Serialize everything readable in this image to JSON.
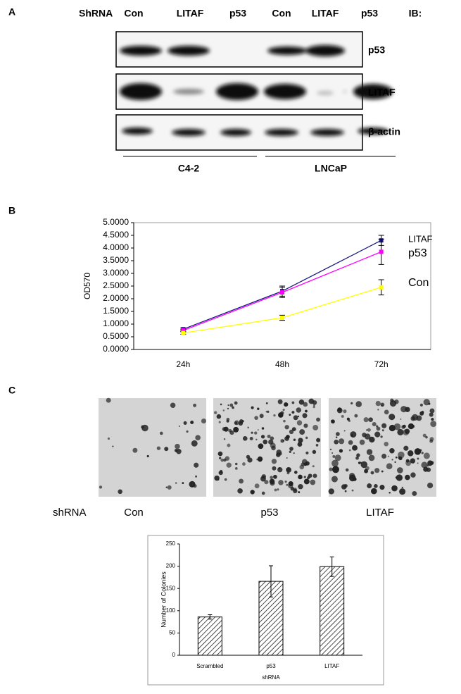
{
  "panels": {
    "A": {
      "label": "A",
      "header": [
        "ShRNA",
        "Con",
        "LITAF",
        "p53",
        "Con",
        "LITAF",
        "p53",
        "IB:"
      ],
      "blots": [
        "p53",
        "LITAF",
        "β-actin"
      ],
      "groups": [
        "C4-2",
        "LNCaP"
      ]
    },
    "B": {
      "label": "B"
    },
    "C": {
      "label": "C",
      "row_label": "shRNA",
      "images": [
        "Con",
        "p53",
        "LITAF"
      ]
    }
  },
  "chart_data": [
    {
      "type": "line",
      "categories": [
        "24h",
        "48h",
        "72h"
      ],
      "y_label": "OD570",
      "ylim": [
        0,
        5
      ],
      "yticks": [
        {
          "value": 0,
          "label": "0.0000"
        },
        {
          "value": 0.5,
          "label": "0.5000"
        },
        {
          "value": 1,
          "label": "1.0000"
        },
        {
          "value": 1.5,
          "label": "1.5000"
        },
        {
          "value": 2,
          "label": "2.0000"
        },
        {
          "value": 2.5,
          "label": "2.5000"
        },
        {
          "value": 3,
          "label": "3.0000"
        },
        {
          "value": 3.5,
          "label": "3.5000"
        },
        {
          "value": 4,
          "label": "4.0000"
        },
        {
          "value": 4.5,
          "label": "4.5000"
        },
        {
          "value": 5,
          "label": "5.0000"
        }
      ],
      "series": [
        {
          "name": "LITAF",
          "color": "#1a1a80",
          "values": [
            0.8,
            2.3,
            4.3
          ],
          "errors": [
            0.05,
            0.2,
            0.2
          ]
        },
        {
          "name": "p53",
          "color": "#ff00ff",
          "values": [
            0.75,
            2.25,
            3.85
          ],
          "errors": [
            0.05,
            0.2,
            0.5
          ]
        },
        {
          "name": "Con",
          "color": "#ffff00",
          "values": [
            0.65,
            1.25,
            2.45
          ],
          "errors": [
            0.05,
            0.1,
            0.3
          ]
        }
      ]
    },
    {
      "type": "bar",
      "categories": [
        "Scrambled",
        "p53",
        "LITAF"
      ],
      "values": [
        86,
        166,
        199
      ],
      "errors": [
        5,
        35,
        22
      ],
      "color": "#000000",
      "y_label": "Number of Colonies",
      "x_label": "shRNA",
      "ylim": [
        0,
        250
      ],
      "yticks": [
        0,
        50,
        100,
        150,
        200,
        250
      ]
    }
  ]
}
